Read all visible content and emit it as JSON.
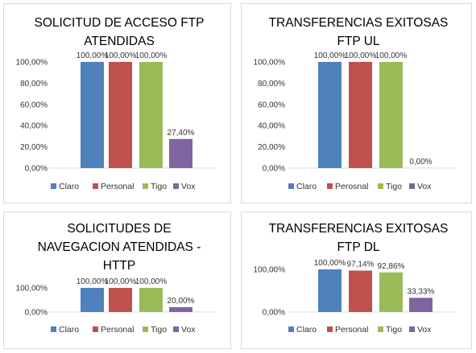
{
  "chart_data": [
    {
      "type": "bar",
      "title": "SOLICITUD DE ACCESO FTP ATENDIDAS",
      "categories": [
        "Claro",
        "Personal",
        "Tigo",
        "Vox"
      ],
      "values": [
        100.0,
        100.0,
        100.0,
        27.4
      ],
      "data_labels": [
        "100,00%",
        "100,00%",
        "100,00%",
        "27,40%"
      ],
      "y_ticks": [
        "0,00%",
        "20,00%",
        "40,00%",
        "60,00%",
        "80,00%",
        "100,00%"
      ],
      "ylim": [
        0,
        100
      ],
      "legend": [
        "Claro",
        "Personal",
        "Tigo",
        "Vox"
      ],
      "legend_position": "bottom",
      "grid": false
    },
    {
      "type": "bar",
      "title": "TRANSFERENCIAS EXITOSAS FTP UL",
      "categories": [
        "Claro",
        "Perosnal",
        "Tigo",
        "Vox"
      ],
      "values": [
        100.0,
        100.0,
        100.0,
        0.0
      ],
      "data_labels": [
        "100,00%",
        "100,00%",
        "100,00%",
        "0,00%"
      ],
      "y_ticks": [
        "0,00%",
        "20,00%",
        "40,00%",
        "60,00%",
        "80,00%",
        "100,00%"
      ],
      "ylim": [
        0,
        100
      ],
      "legend": [
        "Claro",
        "Perosnal",
        "Tigo",
        "Vox"
      ],
      "legend_position": "bottom",
      "grid": false
    },
    {
      "type": "bar",
      "title": "SOLICITUDES DE NAVEGACION ATENDIDAS - HTTP",
      "categories": [
        "Claro",
        "Personal",
        "Tigo",
        "Vox"
      ],
      "values": [
        100.0,
        100.0,
        100.0,
        20.0
      ],
      "data_labels": [
        "100,00%",
        "100,00%",
        "100,00%",
        "20,00%"
      ],
      "y_ticks": [
        "0,00%",
        "100,00%"
      ],
      "ylim": [
        0,
        100
      ],
      "legend": [
        "Claro",
        "Personal",
        "Tigo",
        "Vox"
      ],
      "legend_position": "bottom",
      "grid": false
    },
    {
      "type": "bar",
      "title": "TRANSFERENCIAS EXITOSAS FTP DL",
      "categories": [
        "Claro",
        "Personal",
        "Tigo",
        "Vox"
      ],
      "values": [
        100.0,
        97.14,
        92.86,
        33.33
      ],
      "data_labels": [
        "100,00%",
        "97,14%",
        "92,86%",
        "33,33%"
      ],
      "y_ticks": [
        "0,00%",
        "100,00%"
      ],
      "ylim": [
        0,
        100
      ],
      "legend": [
        "Claro",
        "Personal",
        "Tigo",
        "Vox"
      ],
      "legend_position": "bottom",
      "grid": false
    }
  ],
  "colors": [
    "#4f81bd",
    "#c0504d",
    "#9bbb59",
    "#8064a2"
  ]
}
